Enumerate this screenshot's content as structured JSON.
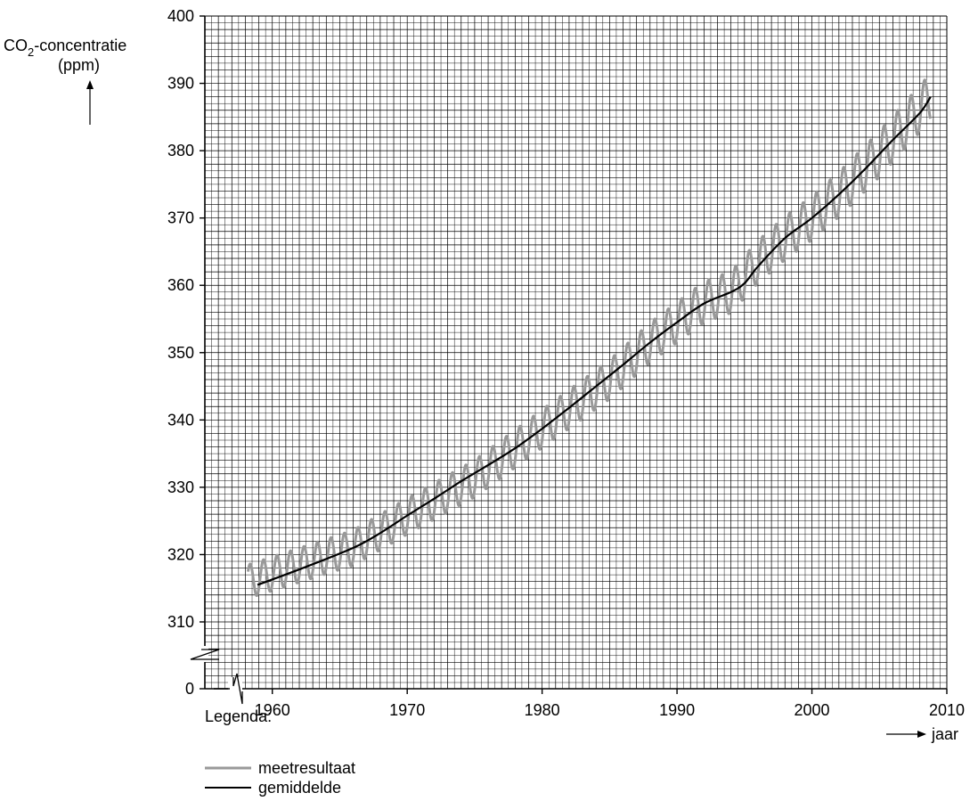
{
  "chart_data": {
    "type": "line",
    "ylabel": {
      "prefix": "CO",
      "subscript": "2",
      "suffix": "-concentratie",
      "unit": "(ppm)"
    },
    "xlabel": "jaar",
    "legend_title": "Legenda:",
    "legend_placement": "bottom-left",
    "grid": true,
    "axis_break": true,
    "xlim": [
      1955,
      2010
    ],
    "ylim": [
      305,
      400
    ],
    "x_ticks": [
      "1960",
      "1970",
      "1980",
      "1990",
      "2000",
      "2010"
    ],
    "y_ticks": [
      "0",
      "310",
      "320",
      "330",
      "340",
      "350",
      "360",
      "370",
      "380",
      "390",
      "400"
    ],
    "series": [
      {
        "name": "meetresultaat",
        "color": "#999999",
        "style": "seasonal",
        "description_values": {
          "trend_points": [
            [
              1958.2,
              316.0
            ],
            [
              1966,
              321.0
            ],
            [
              1970,
              325.7
            ],
            [
              1975,
              331.3
            ],
            [
              1980,
              338.7
            ],
            [
              1985,
              346.0
            ],
            [
              1988,
              351.5
            ],
            [
              1990,
              354.5
            ],
            [
              1992,
              357.5
            ],
            [
              1994,
              359.0
            ],
            [
              1996,
              363.5
            ],
            [
              1998,
              367.0
            ],
            [
              2000,
              370.0
            ],
            [
              2002,
              373.5
            ],
            [
              2005,
              379.5
            ],
            [
              2008.8,
              388.0
            ]
          ],
          "seasonal_amplitude": [
            [
              1958,
              2.5
            ],
            [
              1990,
              3.0
            ],
            [
              2008,
              3.5
            ]
          ]
        }
      },
      {
        "name": "gemiddelde",
        "color": "#000000",
        "style": "smooth",
        "points": [
          [
            1958.9,
            315.5
          ],
          [
            1962,
            317.8
          ],
          [
            1966,
            321.0
          ],
          [
            1968,
            323.2
          ],
          [
            1970,
            325.8
          ],
          [
            1972,
            328.3
          ],
          [
            1974,
            330.9
          ],
          [
            1976,
            333.3
          ],
          [
            1978,
            335.8
          ],
          [
            1980,
            338.7
          ],
          [
            1982,
            341.8
          ],
          [
            1984,
            345.0
          ],
          [
            1986,
            348.2
          ],
          [
            1988,
            351.5
          ],
          [
            1990,
            354.5
          ],
          [
            1992,
            357.3
          ],
          [
            1994,
            359.0
          ],
          [
            1995,
            360.3
          ],
          [
            1996,
            362.8
          ],
          [
            1998,
            367.0
          ],
          [
            2000,
            370.0
          ],
          [
            2002,
            373.5
          ],
          [
            2004,
            377.4
          ],
          [
            2006,
            381.6
          ],
          [
            2008,
            385.6
          ],
          [
            2008.8,
            388.0
          ]
        ]
      }
    ]
  }
}
